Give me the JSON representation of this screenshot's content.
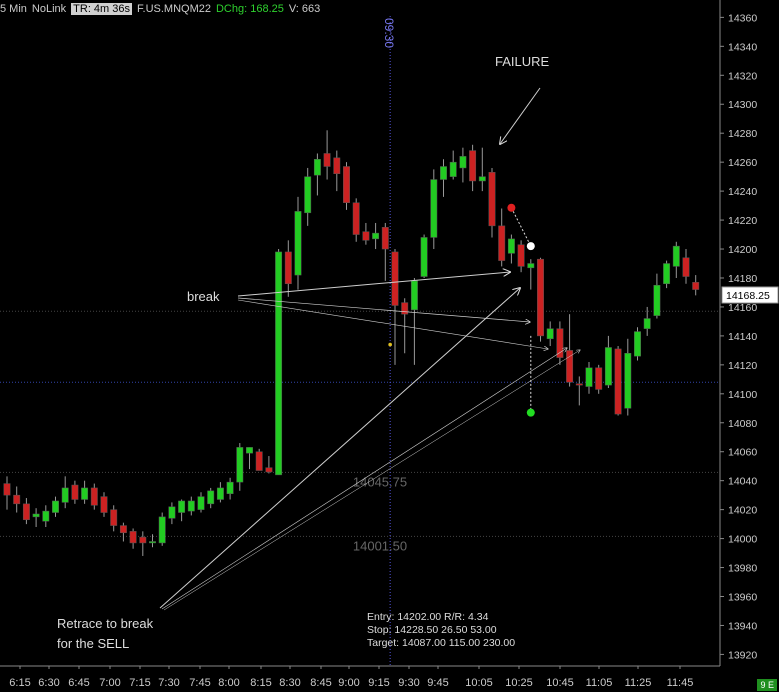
{
  "header": {
    "interval": "5 Min",
    "link": "NoLink",
    "timer": "TR: 4m 36s",
    "symbol": "F.US.MNQM22",
    "dchg": "DChg: 168.25",
    "volume": "V: 663"
  },
  "corner_badge": "9 E",
  "colors": {
    "up": "#22cc22",
    "down": "#cc2222",
    "background": "#000000",
    "text": "#cccccc",
    "session_line": "#5555dd"
  },
  "chart_data": {
    "type": "candlestick",
    "x_ticks": [
      "6:15",
      "6:30",
      "6:45",
      "7:00",
      "7:15",
      "7:30",
      "7:45",
      "8:00",
      "8:15",
      "8:30",
      "8:45",
      "9:00",
      "9:15",
      "9:30",
      "9:45",
      "10:05",
      "10:25",
      "10:45",
      "11:05",
      "11:25",
      "11:45"
    ],
    "y_ticks": [
      13920,
      13940,
      13960,
      13980,
      14000,
      14020,
      14040,
      14060,
      14080,
      14100,
      14120,
      14140,
      14160,
      14180,
      14200,
      14220,
      14240,
      14260,
      14280,
      14300,
      14320,
      14340,
      14360
    ],
    "ylim": [
      13912,
      14372
    ],
    "candles": [
      {
        "o": 14038,
        "c": 14030,
        "h": 14043,
        "l": 14020
      },
      {
        "o": 14030,
        "c": 14024,
        "h": 14036,
        "l": 14018
      },
      {
        "o": 14024,
        "c": 14013,
        "h": 14028,
        "l": 14010
      },
      {
        "o": 14015,
        "c": 14017,
        "h": 14021,
        "l": 14008
      },
      {
        "o": 14012,
        "c": 14019,
        "h": 14023,
        "l": 14008
      },
      {
        "o": 14018,
        "c": 14026,
        "h": 14029,
        "l": 14015
      },
      {
        "o": 14025,
        "c": 14035,
        "h": 14043,
        "l": 14021
      },
      {
        "o": 14037,
        "c": 14027,
        "h": 14040,
        "l": 14024
      },
      {
        "o": 14027,
        "c": 14035,
        "h": 14040,
        "l": 14024
      },
      {
        "o": 14035,
        "c": 14023,
        "h": 14038,
        "l": 14020
      },
      {
        "o": 14029,
        "c": 14018,
        "h": 14032,
        "l": 14015
      },
      {
        "o": 14020,
        "c": 14009,
        "h": 14023,
        "l": 14005
      },
      {
        "o": 14009,
        "c": 14004,
        "h": 14011,
        "l": 13998
      },
      {
        "o": 14005,
        "c": 13997,
        "h": 14007,
        "l": 13993
      },
      {
        "o": 14001,
        "c": 13997,
        "h": 14005,
        "l": 13988
      },
      {
        "o": 13997,
        "c": 13998,
        "h": 14003,
        "l": 13994
      },
      {
        "o": 13997,
        "c": 14015,
        "h": 14018,
        "l": 13995
      },
      {
        "o": 14014,
        "c": 14022,
        "h": 14025,
        "l": 14010
      },
      {
        "o": 14018,
        "c": 14026,
        "h": 14027,
        "l": 14012
      },
      {
        "o": 14019,
        "c": 14026,
        "h": 14029,
        "l": 14016
      },
      {
        "o": 14020,
        "c": 14029,
        "h": 14032,
        "l": 14018
      },
      {
        "o": 14024,
        "c": 14033,
        "h": 14035,
        "l": 14021
      },
      {
        "o": 14027,
        "c": 14035,
        "h": 14039,
        "l": 14025
      },
      {
        "o": 14031,
        "c": 14039,
        "h": 14042,
        "l": 14027
      },
      {
        "o": 14039,
        "c": 14063,
        "h": 14066,
        "l": 14033
      },
      {
        "o": 14059,
        "c": 14063,
        "h": 14063,
        "l": 14048
      },
      {
        "o": 14060,
        "c": 14047,
        "h": 14062,
        "l": 14047
      },
      {
        "o": 14049,
        "c": 14046,
        "h": 14057,
        "l": 14045
      },
      {
        "o": 14044,
        "c": 14198,
        "h": 14200,
        "l": 14044
      },
      {
        "o": 14198,
        "c": 14176,
        "h": 14206,
        "l": 14167
      },
      {
        "o": 14182,
        "c": 14226,
        "h": 14236,
        "l": 14172
      },
      {
        "o": 14225,
        "c": 14250,
        "h": 14256,
        "l": 14216
      },
      {
        "o": 14251,
        "c": 14262,
        "h": 14266,
        "l": 14237
      },
      {
        "o": 14266,
        "c": 14257,
        "h": 14282,
        "l": 14248
      },
      {
        "o": 14263,
        "c": 14252,
        "h": 14268,
        "l": 14240
      },
      {
        "o": 14257,
        "c": 14232,
        "h": 14260,
        "l": 14227
      },
      {
        "o": 14232,
        "c": 14210,
        "h": 14235,
        "l": 14205
      },
      {
        "o": 14212,
        "c": 14206,
        "h": 14218,
        "l": 14203
      },
      {
        "o": 14207,
        "c": 14211,
        "h": 14218,
        "l": 14200
      },
      {
        "o": 14215,
        "c": 14200,
        "h": 14218,
        "l": 14178
      },
      {
        "o": 14198,
        "c": 14161,
        "h": 14200,
        "l": 14120
      },
      {
        "o": 14163,
        "c": 14155,
        "h": 14166,
        "l": 14128
      },
      {
        "o": 14158,
        "c": 14178,
        "h": 14180,
        "l": 14120
      },
      {
        "o": 14181,
        "c": 14208,
        "h": 14210,
        "l": 14180
      },
      {
        "o": 14208,
        "c": 14248,
        "h": 14255,
        "l": 14200
      },
      {
        "o": 14248,
        "c": 14257,
        "h": 14262,
        "l": 14236
      },
      {
        "o": 14250,
        "c": 14260,
        "h": 14268,
        "l": 14248
      },
      {
        "o": 14256,
        "c": 14264,
        "h": 14270,
        "l": 14246
      },
      {
        "o": 14268,
        "c": 14247,
        "h": 14272,
        "l": 14240
      },
      {
        "o": 14247,
        "c": 14250,
        "h": 14270,
        "l": 14240
      },
      {
        "o": 14253,
        "c": 14216,
        "h": 14256,
        "l": 14208
      },
      {
        "o": 14216,
        "c": 14192,
        "h": 14228,
        "l": 14188
      },
      {
        "o": 14197,
        "c": 14207,
        "h": 14210,
        "l": 14190
      },
      {
        "o": 14203,
        "c": 14188,
        "h": 14206,
        "l": 14184
      },
      {
        "o": 14187,
        "c": 14190,
        "h": 14193,
        "l": 14172
      },
      {
        "o": 14193,
        "c": 14140,
        "h": 14194,
        "l": 14136
      },
      {
        "o": 14138,
        "c": 14145,
        "h": 14150,
        "l": 14133
      },
      {
        "o": 14145,
        "c": 14125,
        "h": 14150,
        "l": 14120
      },
      {
        "o": 14130,
        "c": 14108,
        "h": 14155,
        "l": 14105
      },
      {
        "o": 14107,
        "c": 14106,
        "h": 14112,
        "l": 14092
      },
      {
        "o": 14105,
        "c": 14118,
        "h": 14122,
        "l": 14100
      },
      {
        "o": 14118,
        "c": 14103,
        "h": 14120,
        "l": 14100
      },
      {
        "o": 14106,
        "c": 14132,
        "h": 14140,
        "l": 14104
      },
      {
        "o": 14131,
        "c": 14086,
        "h": 14133,
        "l": 14085
      },
      {
        "o": 14090,
        "c": 14128,
        "h": 14138,
        "l": 14085
      },
      {
        "o": 14126,
        "c": 14143,
        "h": 14146,
        "l": 14123
      },
      {
        "o": 14145,
        "c": 14152,
        "h": 14160,
        "l": 14140
      },
      {
        "o": 14154,
        "c": 14175,
        "h": 14183,
        "l": 14152
      },
      {
        "o": 14176,
        "c": 14190,
        "h": 14192,
        "l": 14173
      },
      {
        "o": 14188,
        "c": 14202,
        "h": 14205,
        "l": 14180
      },
      {
        "o": 14194,
        "c": 14181,
        "h": 14200,
        "l": 14176
      },
      {
        "o": 14177,
        "c": 14172,
        "h": 14182,
        "l": 14168
      }
    ],
    "last_price": "14168.25",
    "session_marker": {
      "label": "09:30",
      "after_candle": 39
    },
    "horizontal_levels": [
      {
        "price": 14045.75,
        "label": "14045.75"
      },
      {
        "price": 14001.5,
        "label": "14001.50"
      },
      {
        "price": 14157,
        "label": ""
      },
      {
        "price": 14108,
        "label": ""
      }
    ],
    "order_markers": [
      {
        "candle": 52,
        "price": 14228.5,
        "role": "stop"
      },
      {
        "candle": 54,
        "price": 14202.0,
        "role": "entry"
      },
      {
        "candle": 54,
        "price": 14087.0,
        "role": "target"
      }
    ],
    "annotations": {
      "failure": "FAILURE",
      "break": "break",
      "retrace_line1": "Retrace to break",
      "retrace_line2": "for the SELL"
    },
    "trade_info": {
      "line1": "Entry: 14202.00  R/R: 4.34",
      "line2": "Stop: 14228.50  26.50  53.00",
      "line3": "Target: 14087.00  115.00  230.00"
    }
  }
}
